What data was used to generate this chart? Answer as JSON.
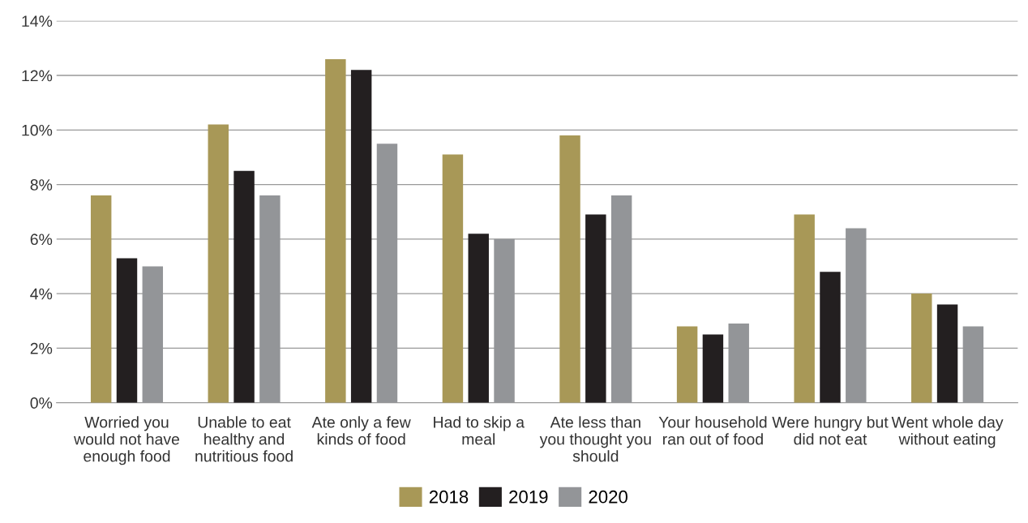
{
  "chart_data": {
    "type": "bar",
    "categories": [
      "Worried you would not have enough food",
      "Unable to eat healthy and nutritious food",
      "Ate only a few kinds of food",
      "Had to skip a meal",
      "Ate less than you thought you should",
      "Your household ran out of food",
      "Were hungry but did not eat",
      "Went whole day without eating"
    ],
    "series": [
      {
        "name": "2018",
        "color": "#a89857",
        "values": [
          7.6,
          10.2,
          12.6,
          9.1,
          9.8,
          2.8,
          6.9,
          4.0
        ]
      },
      {
        "name": "2019",
        "color": "#231f20",
        "values": [
          5.3,
          8.5,
          12.2,
          6.2,
          6.9,
          2.5,
          4.8,
          3.6
        ]
      },
      {
        "name": "2020",
        "color": "#939598",
        "values": [
          5.0,
          7.6,
          9.5,
          6.0,
          7.6,
          2.9,
          6.4,
          2.8
        ]
      }
    ],
    "ylim": [
      0,
      14
    ],
    "yticks": [
      {
        "value": 0,
        "label": "0%"
      },
      {
        "value": 2,
        "label": "2%"
      },
      {
        "value": 4,
        "label": "4%"
      },
      {
        "value": 6,
        "label": "6%"
      },
      {
        "value": 8,
        "label": "8%"
      },
      {
        "value": 10,
        "label": "10%"
      },
      {
        "value": 12,
        "label": "12%"
      },
      {
        "value": 14,
        "label": "14%"
      }
    ],
    "grid": "y",
    "legend": "bottom"
  }
}
